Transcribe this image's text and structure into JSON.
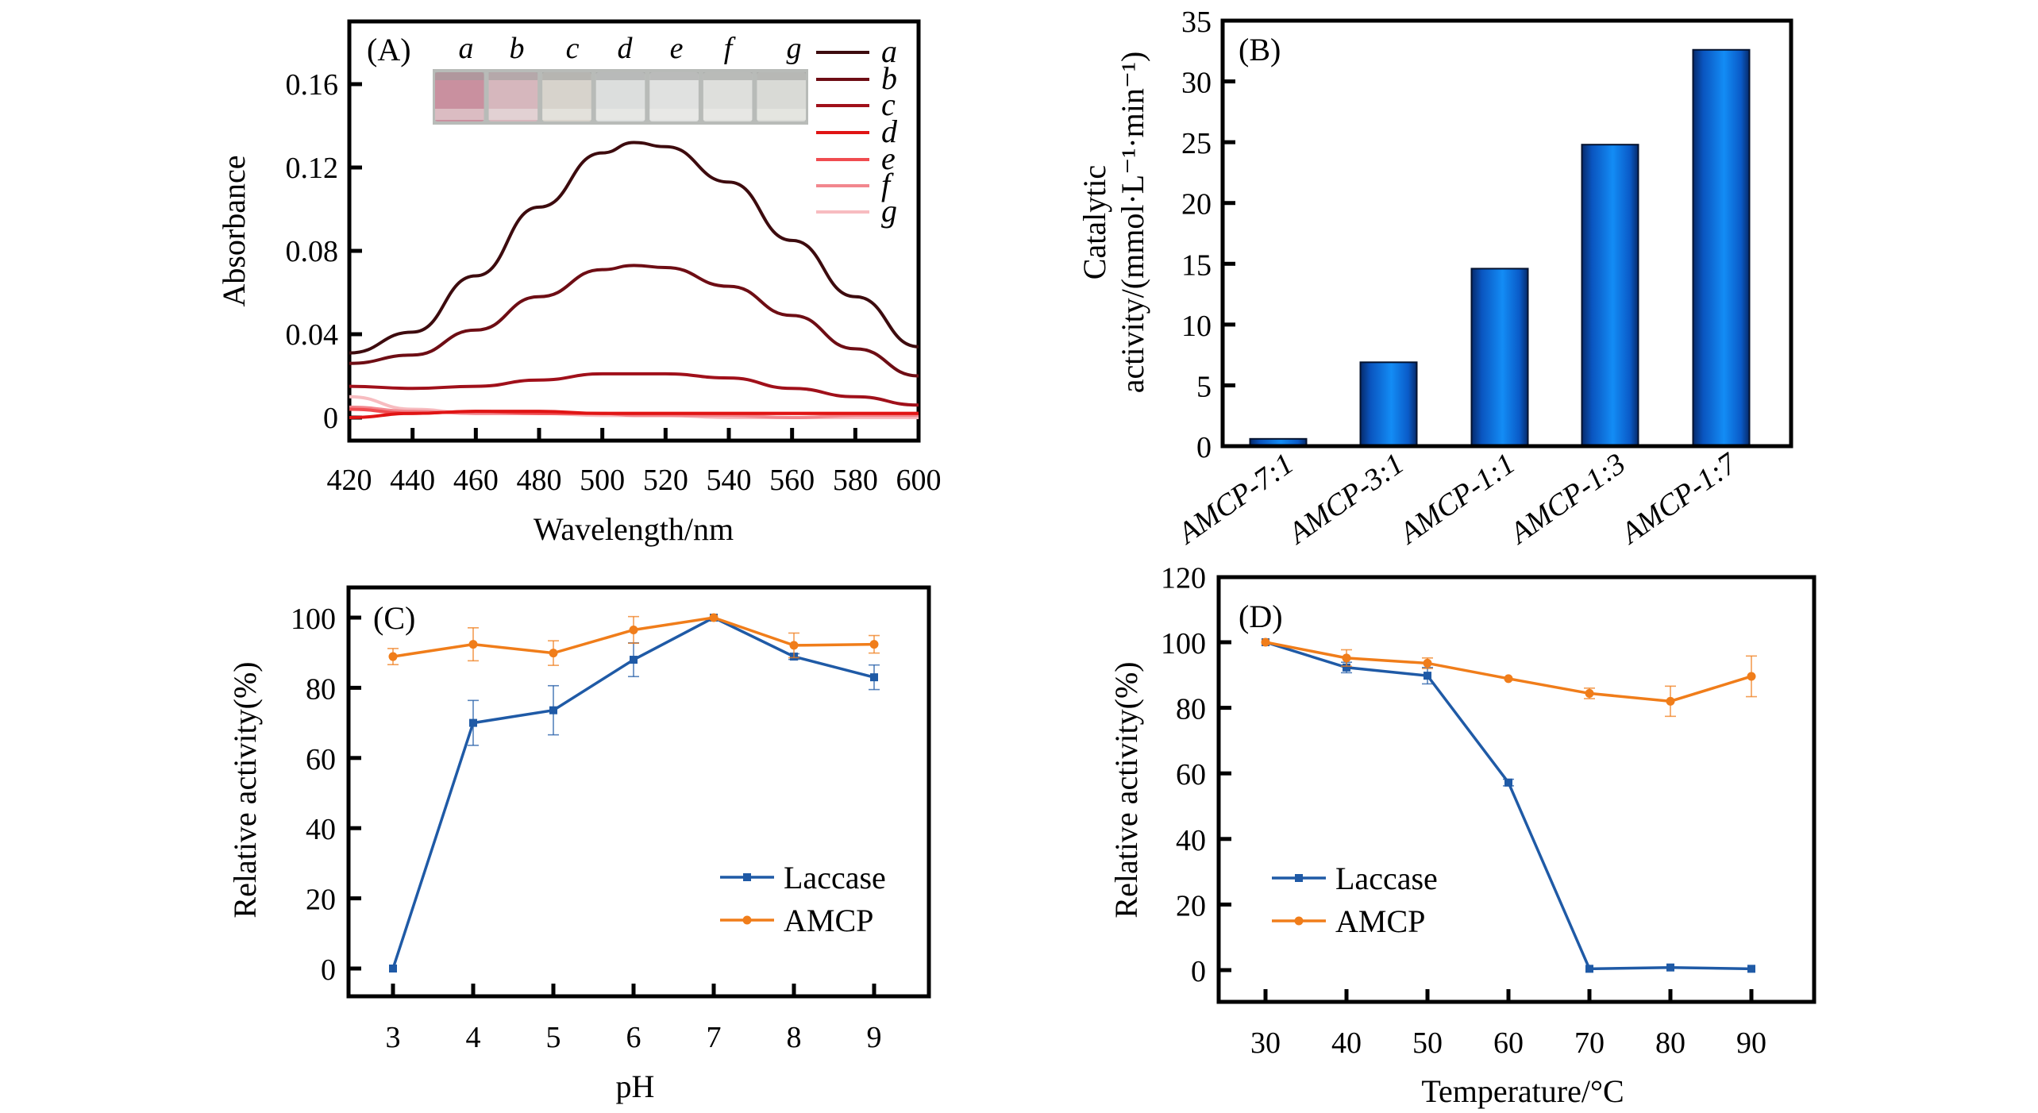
{
  "figure": {
    "panels": [
      "(A)",
      "(B)",
      "(C)",
      "(D)"
    ]
  },
  "chart_data": [
    {
      "id": "A",
      "type": "line",
      "panel_label": "(A)",
      "title": "",
      "xlabel": "Wavelength/nm",
      "ylabel": "Absorbance",
      "xlim": [
        420,
        600
      ],
      "ylim": [
        -0.011,
        0.184
      ],
      "xticks": [
        420,
        440,
        460,
        480,
        500,
        520,
        540,
        560,
        580,
        600
      ],
      "xtick_labels": [
        "420",
        "440",
        "460",
        "480",
        "500",
        "520",
        "540",
        "560",
        "580",
        "600"
      ],
      "yticks": [
        0,
        0.04,
        0.08,
        0.12,
        0.16
      ],
      "ytick_labels": [
        "0",
        "0.04",
        "0.08",
        "0.12",
        "0.16"
      ],
      "legend_placement": "top-right",
      "inset": {
        "description": "photo of sample vials a-g (pink to colorless)",
        "labels": [
          "a",
          "b",
          "c",
          "d",
          "e",
          "f",
          "g"
        ],
        "vial_colors": [
          "#c9909f",
          "#d6b7bd",
          "#d7d3cc",
          "#dcdedd",
          "#e0e1e0",
          "#dedfdc",
          "#d9dad6"
        ]
      },
      "x": [
        420,
        440,
        460,
        480,
        500,
        510,
        520,
        540,
        560,
        580,
        600
      ],
      "series": [
        {
          "name": "a",
          "color": "#3d0b0e",
          "values": [
            0.031,
            0.041,
            0.068,
            0.101,
            0.127,
            0.132,
            0.13,
            0.113,
            0.085,
            0.058,
            0.034
          ]
        },
        {
          "name": "b",
          "color": "#6e0d14",
          "values": [
            0.026,
            0.03,
            0.042,
            0.058,
            0.071,
            0.073,
            0.072,
            0.063,
            0.049,
            0.033,
            0.02
          ]
        },
        {
          "name": "c",
          "color": "#a0101a",
          "values": [
            0.015,
            0.014,
            0.015,
            0.018,
            0.021,
            0.021,
            0.021,
            0.019,
            0.014,
            0.01,
            0.006
          ]
        },
        {
          "name": "d",
          "color": "#e01414",
          "values": [
            0.0,
            0.002,
            0.003,
            0.003,
            0.002,
            0.002,
            0.002,
            0.002,
            0.002,
            0.002,
            0.002
          ]
        },
        {
          "name": "e",
          "color": "#f04c50",
          "values": [
            0.004,
            0.002,
            0.003,
            0.002,
            0.002,
            0.002,
            0.002,
            0.002,
            0.002,
            0.002,
            0.002
          ]
        },
        {
          "name": "f",
          "color": "#f2878e",
          "values": [
            0.005,
            0.003,
            0.002,
            0.002,
            0.002,
            0.001,
            0.001,
            0.001,
            0.0,
            0.001,
            0.001
          ]
        },
        {
          "name": "g",
          "color": "#f7bcc0",
          "values": [
            0.01,
            0.004,
            0.002,
            0.002,
            0.001,
            0.001,
            0.001,
            0.0,
            0.0,
            0.0,
            0.0
          ]
        }
      ]
    },
    {
      "id": "B",
      "type": "bar",
      "panel_label": "(B)",
      "title": "",
      "xlabel": "",
      "ylabel_line1": "Catalytic",
      "ylabel_line2": "activity/(mmol·L⁻¹·min⁻¹)",
      "categories": [
        "AMCP-7:1",
        "AMCP-3:1",
        "AMCP-1:1",
        "AMCP-1:3",
        "AMCP-1:7"
      ],
      "values": [
        0.6,
        6.9,
        14.6,
        24.8,
        32.6
      ],
      "ylim": [
        0,
        35
      ],
      "yticks": [
        0,
        5,
        10,
        15,
        20,
        25,
        30,
        35
      ],
      "ytick_labels": [
        "0",
        "5",
        "10",
        "15",
        "20",
        "25",
        "30",
        "35"
      ],
      "bar_color": "#0a6ee0"
    },
    {
      "id": "C",
      "type": "line",
      "panel_label": "(C)",
      "title": "",
      "xlabel": "pH",
      "ylabel": "Relative activity(%)",
      "xlim": [
        2.45,
        9.7
      ],
      "ylim": [
        -5,
        110
      ],
      "xticks": [
        3,
        4,
        5,
        6,
        7,
        8,
        9
      ],
      "xtick_labels": [
        "3",
        "4",
        "5",
        "6",
        "7",
        "8",
        "9"
      ],
      "yticks": [
        0,
        20,
        40,
        60,
        80,
        100
      ],
      "ytick_labels": [
        "0",
        "20",
        "40",
        "60",
        "80",
        "100"
      ],
      "legend_placement": "lower-right",
      "x": [
        3,
        4,
        5,
        6,
        7,
        8,
        9
      ],
      "series": [
        {
          "name": "Laccase",
          "color": "#1f5aa6",
          "marker": "square",
          "values": [
            0,
            70,
            73.6,
            88,
            100,
            88.9,
            83
          ],
          "errors": [
            0,
            6.4,
            7,
            4.8,
            0,
            0.8,
            3.5
          ]
        },
        {
          "name": "AMCP",
          "color": "#f07d1a",
          "marker": "circle",
          "values": [
            88.9,
            92.4,
            89.9,
            96.5,
            100,
            92.1,
            92.4
          ],
          "errors": [
            2.3,
            4.7,
            3.5,
            3.8,
            0.5,
            3.5,
            2.5
          ]
        }
      ]
    },
    {
      "id": "D",
      "type": "line",
      "panel_label": "(D)",
      "title": "",
      "xlabel": "Temperature/°C",
      "ylabel": "Relative activity(%)",
      "xlim": [
        24.2,
        96.5
      ],
      "ylim": [
        -10,
        120
      ],
      "xticks": [
        30,
        40,
        50,
        60,
        70,
        80,
        90
      ],
      "xtick_labels": [
        "30",
        "40",
        "50",
        "60",
        "70",
        "80",
        "90"
      ],
      "yticks": [
        0,
        20,
        40,
        60,
        80,
        100,
        120
      ],
      "ytick_labels": [
        "0",
        "20",
        "40",
        "60",
        "80",
        "100",
        "120"
      ],
      "legend_placement": "lower-left",
      "x": [
        30,
        40,
        50,
        60,
        70,
        80,
        90
      ],
      "series": [
        {
          "name": "Laccase",
          "color": "#1f5aa6",
          "marker": "square",
          "values": [
            100,
            92.3,
            89.8,
            57.2,
            0.4,
            0.8,
            0.4
          ],
          "errors": [
            0.5,
            1.6,
            2.5,
            1.0,
            0.3,
            0.3,
            0.3
          ]
        },
        {
          "name": "AMCP",
          "color": "#f07d1a",
          "marker": "circle",
          "values": [
            100,
            95.2,
            93.6,
            88.9,
            84.4,
            82,
            89.6
          ],
          "errors": [
            0.5,
            2.5,
            1.6,
            0.5,
            1.6,
            4.6,
            6.2
          ]
        }
      ]
    }
  ]
}
